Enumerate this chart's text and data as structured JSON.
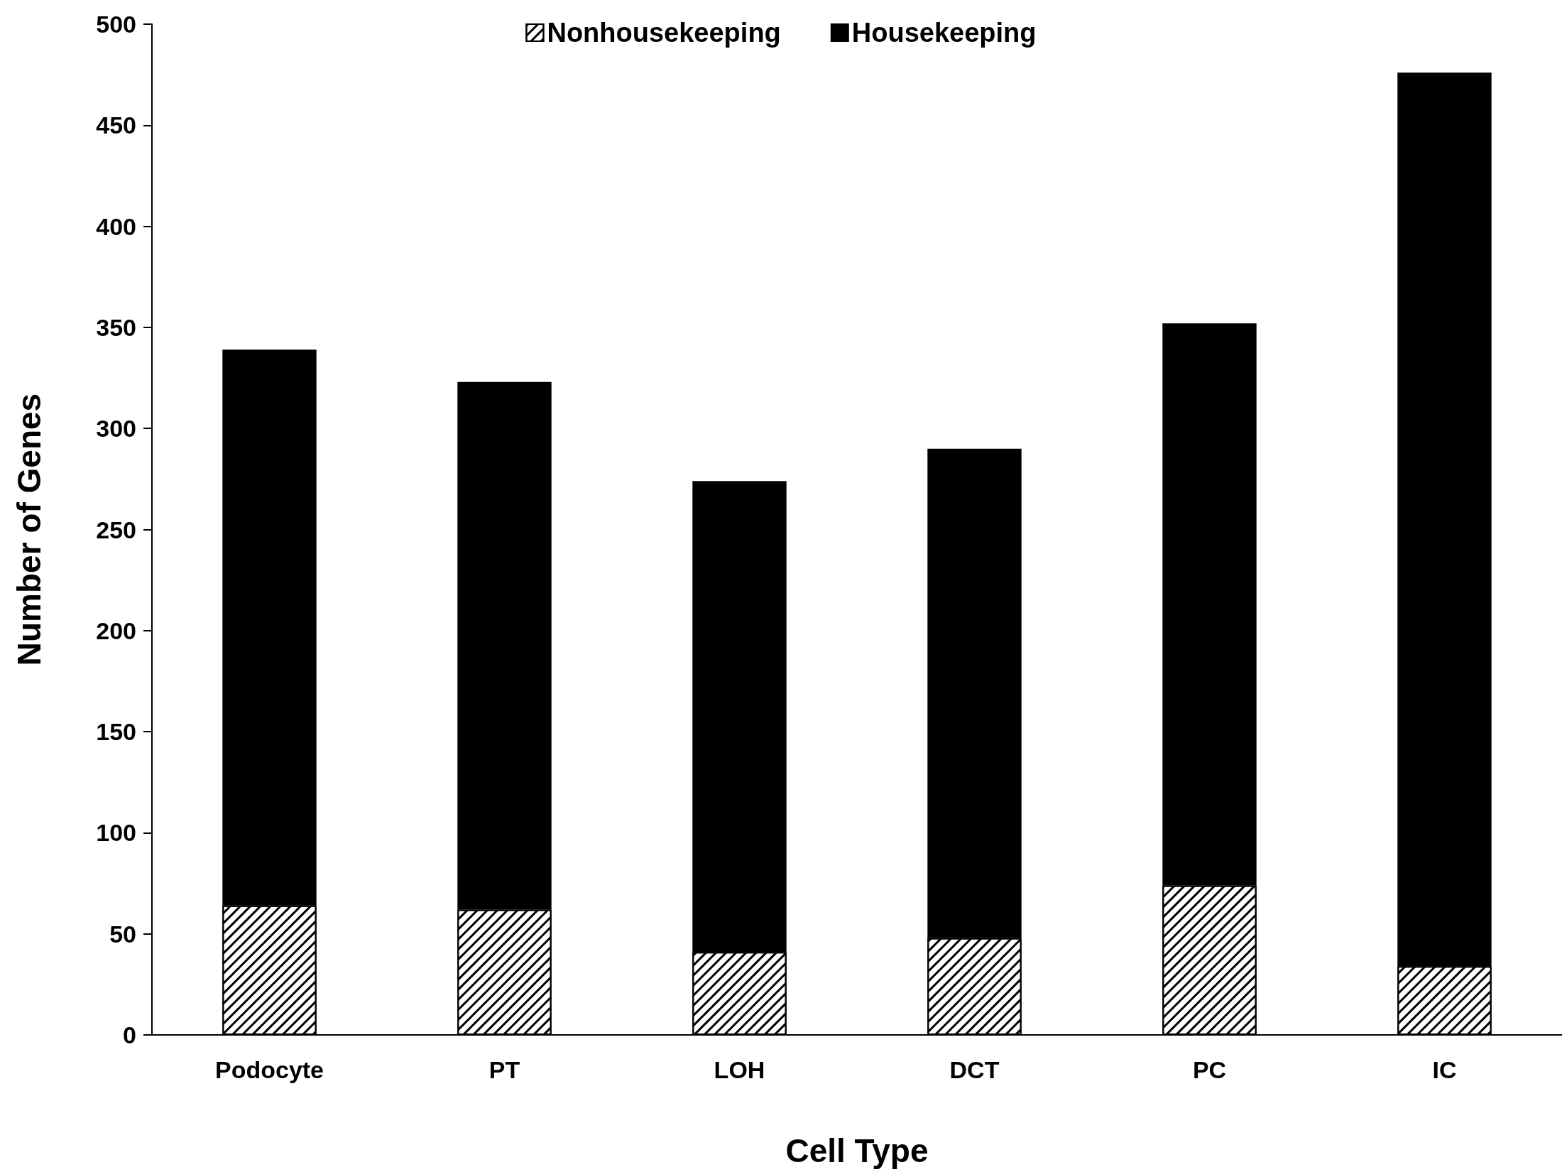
{
  "chart_data": {
    "type": "bar",
    "xlabel": "Cell Type",
    "ylabel": "Number of Genes",
    "categories": [
      "Podocyte",
      "PT",
      "LOH",
      "DCT",
      "PC",
      "IC"
    ],
    "series": [
      {
        "name": "Nonhousekeeping",
        "color": "#ffffff",
        "values": [
          64,
          62,
          41,
          48,
          74,
          34
        ]
      },
      {
        "name": "Housekeeping",
        "color": "#000000",
        "values": [
          275,
          261,
          233,
          242,
          278,
          442
        ]
      }
    ],
    "stacked": true,
    "ylim": [
      0,
      500
    ],
    "yticks": [
      0,
      50,
      100,
      150,
      200,
      250,
      300,
      350,
      400,
      450,
      500
    ],
    "grid": false,
    "legend": "top"
  }
}
